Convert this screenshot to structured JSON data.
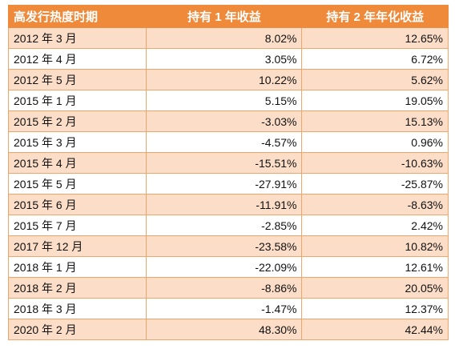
{
  "table": {
    "headers": [
      "高发行热度时期",
      "持有 1 年收益",
      "持有 2 年年化收益"
    ],
    "rows": [
      [
        "2012 年 3 月",
        "8.02%",
        "12.65%"
      ],
      [
        "2012 年 4 月",
        "3.05%",
        "6.72%"
      ],
      [
        "2012 年 5 月",
        "10.22%",
        "5.62%"
      ],
      [
        "2015 年 1 月",
        "5.15%",
        "19.05%"
      ],
      [
        "2015 年 2 月",
        "-3.03%",
        "15.13%"
      ],
      [
        "2015 年 3 月",
        "-4.57%",
        "0.96%"
      ],
      [
        "2015 年 4 月",
        "-15.51%",
        "-10.63%"
      ],
      [
        "2015 年 5 月",
        "-27.91%",
        "-25.87%"
      ],
      [
        "2015 年 6 月",
        "-11.91%",
        "-8.63%"
      ],
      [
        "2015 年 7 月",
        "-2.85%",
        "2.42%"
      ],
      [
        "2017 年 12 月",
        "-23.58%",
        "10.82%"
      ],
      [
        "2018 年 1 月",
        "-22.09%",
        "12.61%"
      ],
      [
        "2018 年 2 月",
        "-8.86%",
        "20.05%"
      ],
      [
        "2018 年 3 月",
        "-1.47%",
        "12.37%"
      ],
      [
        "2020 年 2 月",
        "48.30%",
        "42.44%"
      ]
    ]
  }
}
